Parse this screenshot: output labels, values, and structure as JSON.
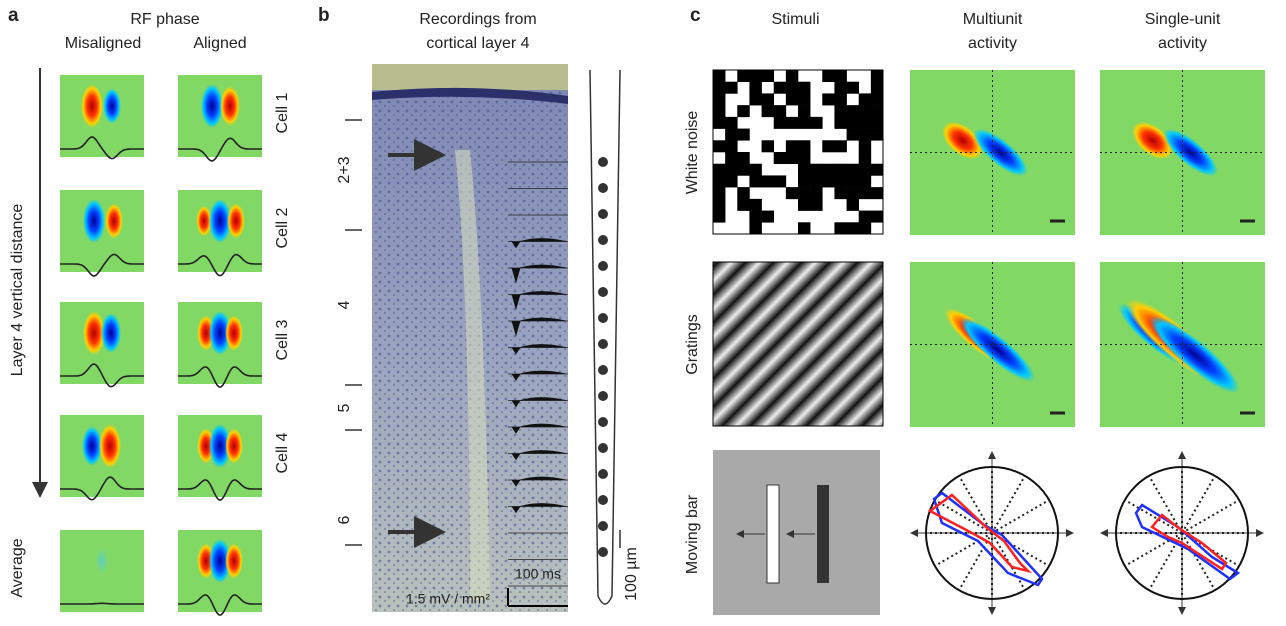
{
  "panel_a": {
    "label": "a",
    "title": "RF phase",
    "columns": [
      "Misaligned",
      "Aligned"
    ],
    "axis_label": "Layer 4 vertical distance",
    "rows": [
      "Cell 1",
      "Cell 2",
      "Cell 3",
      "Cell 4"
    ],
    "average": "Average"
  },
  "panel_b": {
    "label": "b",
    "title_lines": [
      "Recordings from",
      "cortical layer 4"
    ],
    "layers": [
      "2+3",
      "4",
      "5",
      "6"
    ],
    "time_scale": "100 ms",
    "voltage_scale": "1.5 mV / mm²",
    "depth_scale": "100 µm"
  },
  "panel_c": {
    "label": "c",
    "columns": [
      [
        "Stimuli"
      ],
      [
        "Multiunit",
        "activity"
      ],
      [
        "Single-unit",
        "activity"
      ]
    ],
    "rows": [
      "White noise",
      "Gratings",
      "Moving bar"
    ]
  }
}
